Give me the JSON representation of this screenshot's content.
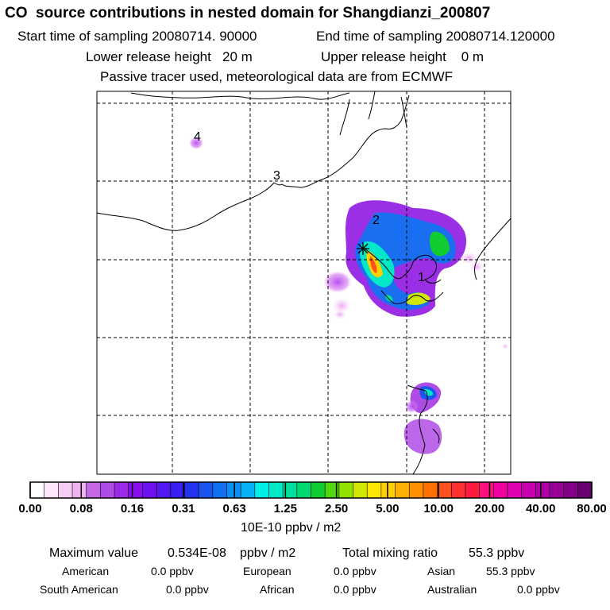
{
  "header": {
    "title": "CO  source contributions in nested domain for Shangdianzi_200807",
    "start_label": "Start time of sampling 20080714. 90000",
    "end_label": "End time of sampling 20080714.120000",
    "lower_label": "Lower release height   20 m",
    "upper_label": "Upper release height    0 m",
    "note": "Passive tracer used, meteorological data are from ECMWF"
  },
  "map": {
    "markers": [
      "1",
      "2",
      "3",
      "4"
    ],
    "receptor": "receptor-star-icon"
  },
  "colorbar": {
    "ticks": [
      "0.00",
      "0.08",
      "0.16",
      "0.31",
      "0.63",
      "1.25",
      "2.50",
      "5.00",
      "10.00",
      "20.00",
      "40.00",
      "80.00"
    ],
    "colors": [
      "#ffffff",
      "#fbe6fb",
      "#f5ccf5",
      "#eeb3ee",
      "#c466e6",
      "#b04ce6",
      "#9d2ae8",
      "#8a0ff0",
      "#6e10f0",
      "#5218f0",
      "#3a20f0",
      "#2533f0",
      "#1a55f0",
      "#1070f0",
      "#0a90f5",
      "#05b0f5",
      "#00eee8",
      "#00e8c8",
      "#00e0a0",
      "#00d870",
      "#10cc30",
      "#50d810",
      "#90e000",
      "#d0e800",
      "#ffe800",
      "#ffd000",
      "#ffb000",
      "#ff9000",
      "#ff7000",
      "#ff5020",
      "#ff3030",
      "#ff1a40",
      "#ff1080",
      "#f000a0",
      "#e000b0",
      "#c800b0",
      "#b000a8",
      "#9a0098",
      "#820088",
      "#6a0070"
    ],
    "unit": "10E-10 ppbv / m2"
  },
  "summary": {
    "max_label": "Maximum value",
    "max_value": "0.534E-08",
    "max_unit": "ppbv / m2",
    "total_label": "Total mixing ratio",
    "total_value": "55.3 ppbv",
    "rows": [
      [
        {
          "label": "American",
          "value": "0.0 ppbv"
        },
        {
          "label": "European",
          "value": "0.0 ppbv"
        },
        {
          "label": "Asian",
          "value": "55.3 ppbv"
        }
      ],
      [
        {
          "label": "South American",
          "value": "0.0 ppbv"
        },
        {
          "label": "African",
          "value": "0.0 ppbv"
        },
        {
          "label": "Australian",
          "value": "0.0 ppbv"
        }
      ]
    ]
  }
}
